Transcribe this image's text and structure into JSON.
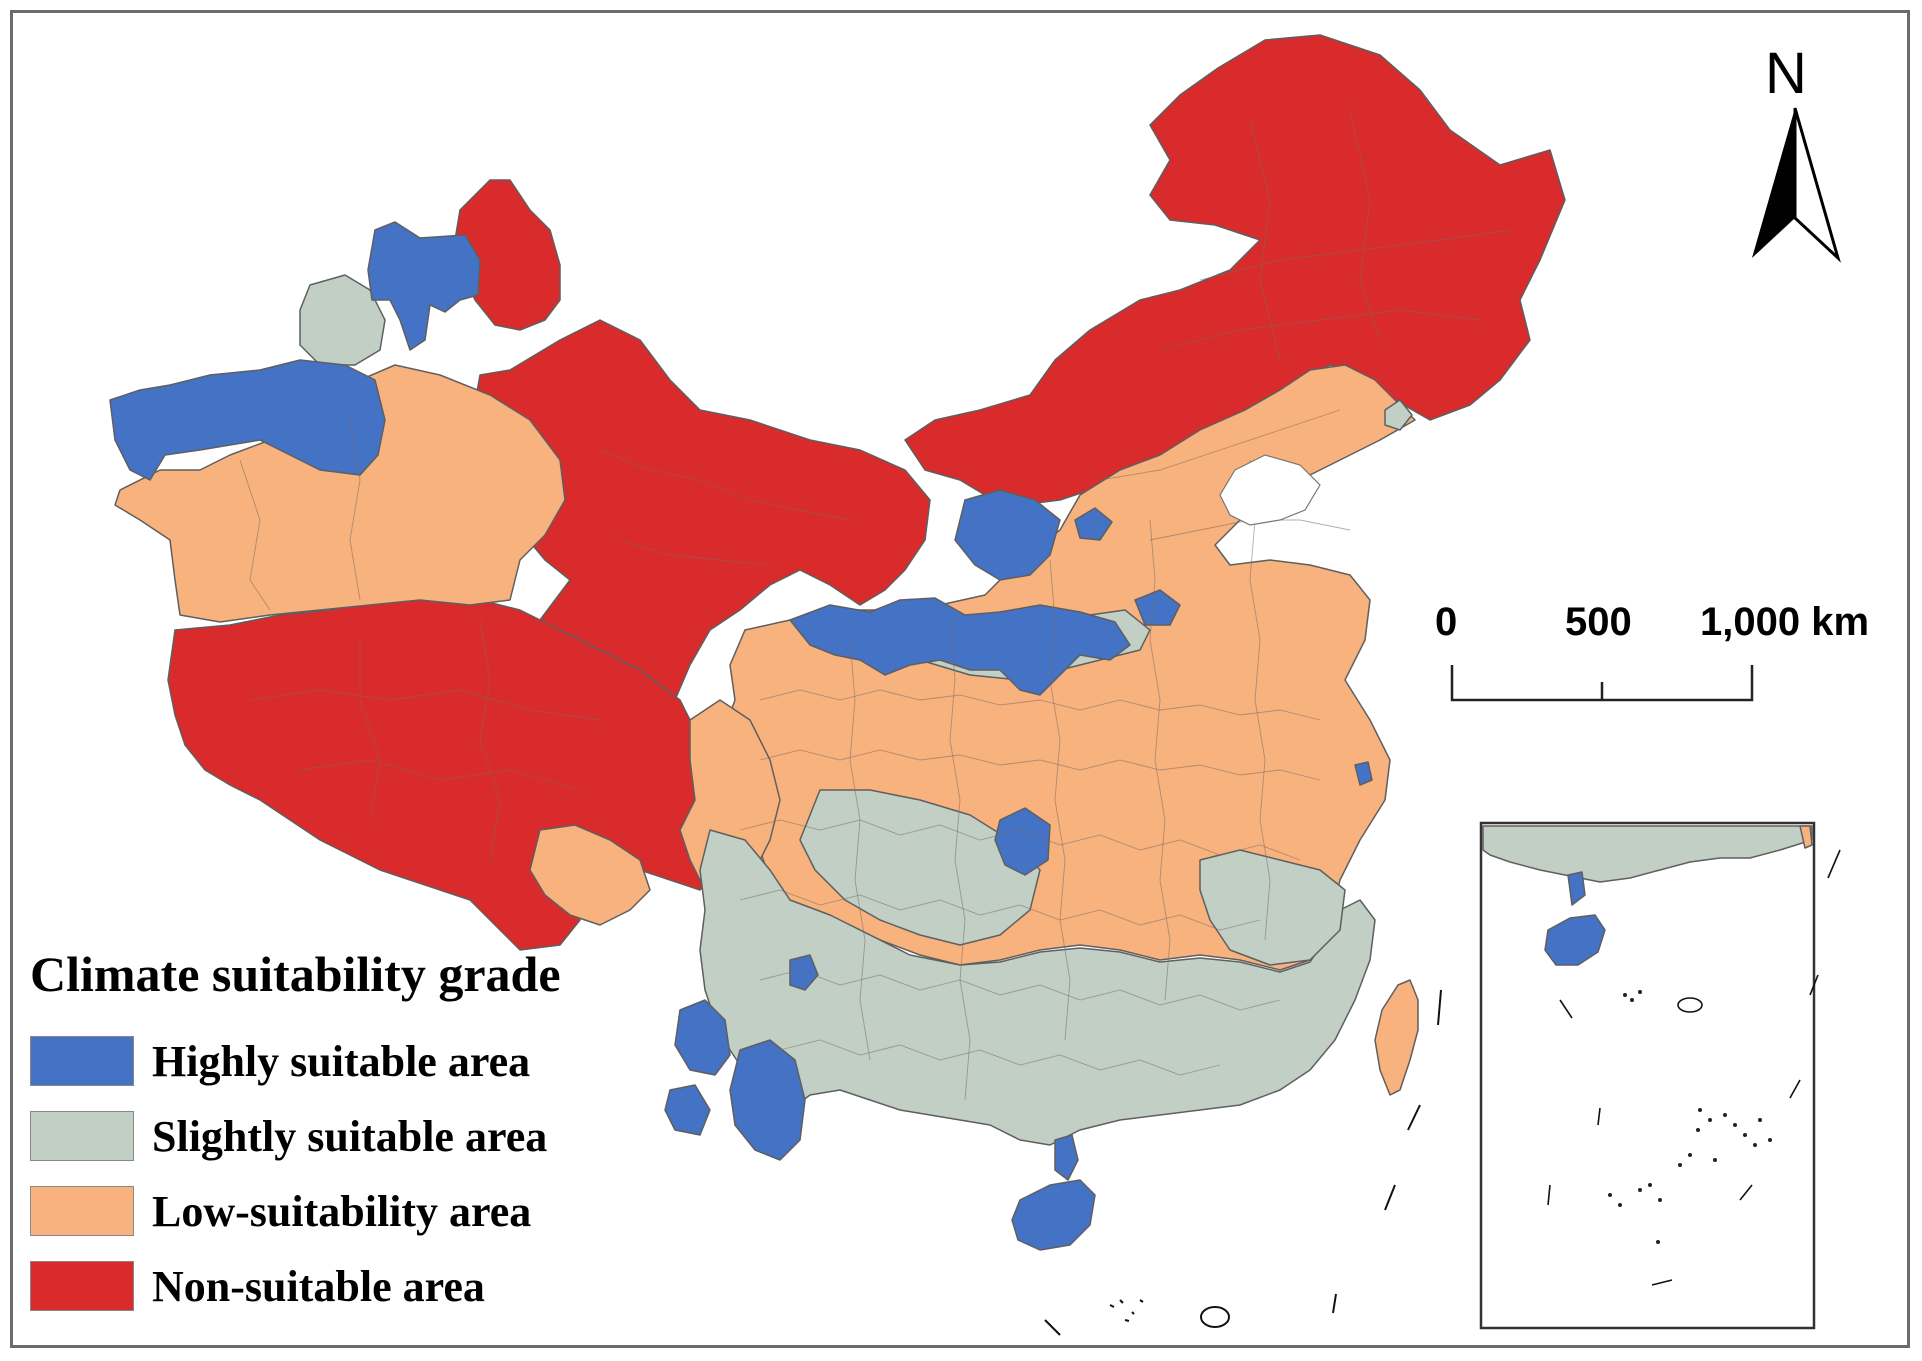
{
  "map": {
    "legend": {
      "title": "Climate suitability grade",
      "items": [
        {
          "label": "Highly suitable area",
          "color": "#4472c4"
        },
        {
          "label": "Slightly suitable area",
          "color": "#c1cfc4"
        },
        {
          "label": "Low-suitability area",
          "color": "#f7b27d"
        },
        {
          "label": "Non-suitable area",
          "color": "#d92b2b"
        }
      ]
    },
    "north_arrow": {
      "label": "N"
    },
    "scale_bar": {
      "labels": [
        "0",
        "500",
        "1,000 km"
      ]
    },
    "inset": {
      "description_icon": "south-china-sea-inset"
    }
  }
}
